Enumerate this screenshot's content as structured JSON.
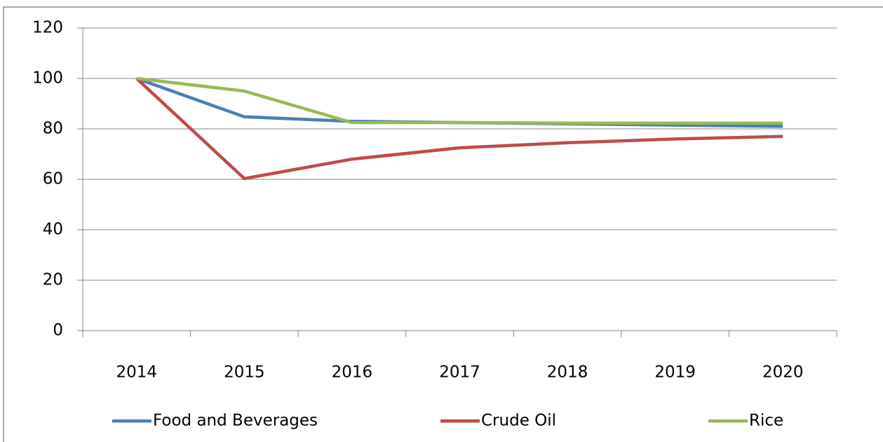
{
  "chart_data": {
    "type": "line",
    "categories": [
      "2014",
      "2015",
      "2016",
      "2017",
      "2018",
      "2019",
      "2020"
    ],
    "series": [
      {
        "name": "Food and Beverages",
        "color": "#4a7ebb",
        "values": [
          100,
          84.8,
          83,
          82.5,
          82,
          81.5,
          81
        ]
      },
      {
        "name": "Crude Oil",
        "color": "#be4b48",
        "values": [
          100,
          60.3,
          68,
          72.5,
          74.5,
          76,
          77
        ]
      },
      {
        "name": "Rice",
        "color": "#98b954",
        "values": [
          100,
          95,
          82.5,
          82.5,
          82.3,
          82.3,
          82.3
        ]
      }
    ],
    "ylim": [
      0,
      120
    ],
    "yticks": [
      0,
      20,
      40,
      60,
      80,
      100,
      120
    ],
    "grid": true,
    "legend": "bottom"
  }
}
